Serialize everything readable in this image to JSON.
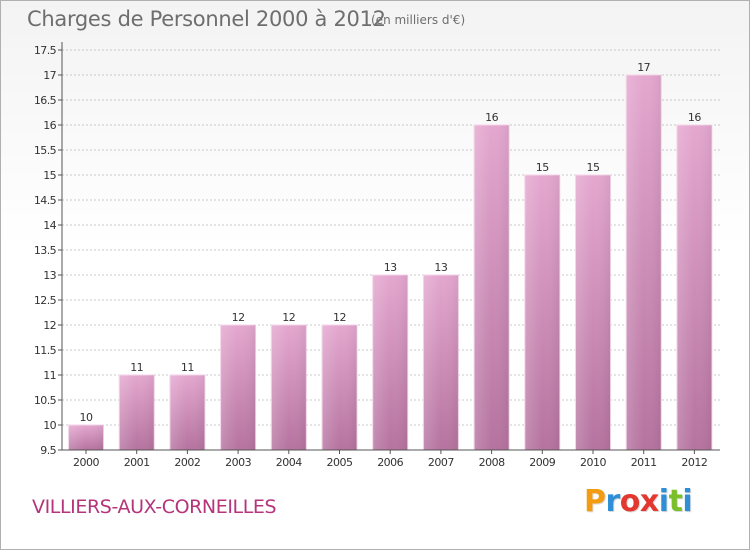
{
  "title": "Charges de Personnel 2000 à 2012",
  "subtitle": "(en milliers d'€)",
  "commune": "VILLIERS-AUX-CORNEILLES",
  "logo": {
    "letters": [
      "P",
      "r",
      "o",
      "x",
      "i",
      "t",
      "i"
    ],
    "colors": [
      "#f39c12",
      "#2e8fd6",
      "#e3382f",
      "#e3382f",
      "#2e8fd6",
      "#7bbf2a",
      "#2e8fd6"
    ]
  },
  "colors": {
    "bar_top": "#e4a7cf",
    "bar_bottom": "#b5739f",
    "grid": "#c8c8c8",
    "axis": "#555555",
    "text": "#333333"
  },
  "chart_data": {
    "type": "bar",
    "categories": [
      "2000",
      "2001",
      "2002",
      "2003",
      "2004",
      "2005",
      "2006",
      "2007",
      "2008",
      "2009",
      "2010",
      "2011",
      "2012"
    ],
    "values": [
      10,
      11,
      11,
      12,
      12,
      12,
      13,
      13,
      16,
      15,
      15,
      17,
      16
    ],
    "ylim": [
      9.5,
      17.5
    ],
    "yticks": [
      "9.5",
      "10",
      "10.5",
      "11",
      "11.5",
      "12",
      "12.5",
      "13",
      "13.5",
      "14",
      "14.5",
      "15",
      "15.5",
      "16",
      "16.5",
      "17",
      "17.5"
    ],
    "grid": true,
    "xlabel": "",
    "ylabel": ""
  }
}
